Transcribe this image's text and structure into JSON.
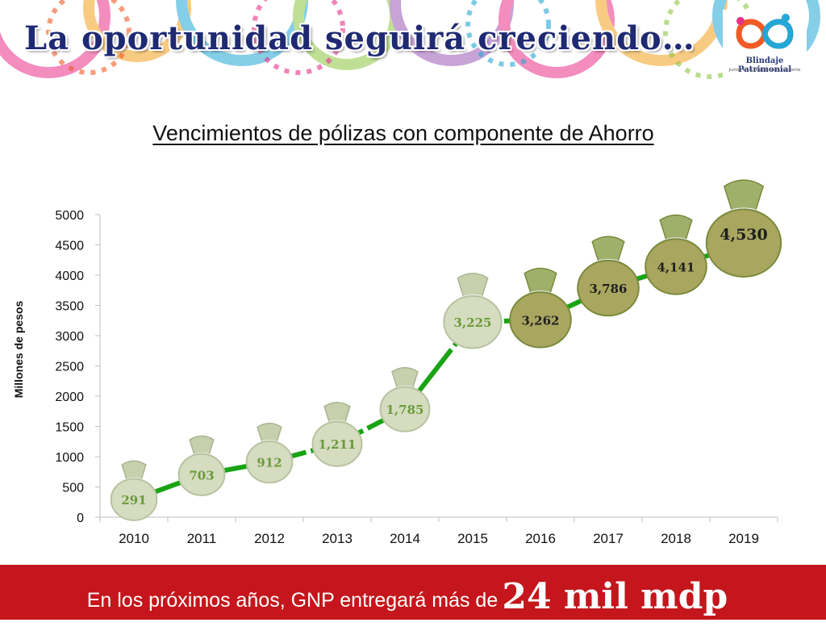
{
  "header": {
    "title": "La oportunidad seguirá creciendo…",
    "logo_text": "Blindaje Patrimonial",
    "logo_tagline": "Juntos en la relación para tu cliente"
  },
  "footer": {
    "text": "En los próximos años, GNP entregará más de",
    "emphasis": "24 mil mdp"
  },
  "colors": {
    "title": "#1f2a73",
    "line": "#1aa314",
    "bag_light": "#d5dcc0",
    "bag_dark": "#a9a660",
    "footer_bg": "#c4161c",
    "label_light": "#6a9a3a",
    "label_dark": "#1e1e1e"
  },
  "chart_data": {
    "type": "line",
    "title": "Vencimientos de pólizas con componente de Ahorro",
    "xlabel": "",
    "ylabel": "Millones de pesos",
    "categories": [
      "2010",
      "2011",
      "2012",
      "2013",
      "2014",
      "2015",
      "2016",
      "2017",
      "2018",
      "2019"
    ],
    "values": [
      291,
      703,
      912,
      1211,
      1785,
      3225,
      3262,
      3786,
      4141,
      4530
    ],
    "data_labels": [
      "291",
      "703",
      "912",
      "1,211",
      "1,785",
      "3,225",
      "3,262",
      "3,786",
      "4,141",
      "4,530"
    ],
    "ylim": [
      0,
      5000
    ],
    "yticks": [
      "0",
      "500",
      "1000",
      "1500",
      "2000",
      "2500",
      "3000",
      "3500",
      "4000",
      "4500",
      "5000"
    ],
    "marker": "money-bag",
    "grid": false,
    "legend": "none"
  }
}
